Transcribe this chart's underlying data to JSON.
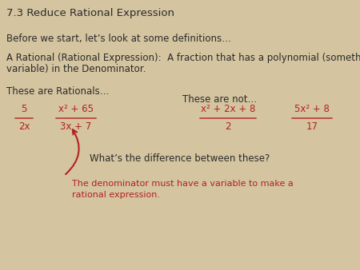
{
  "bg_color": "#d4c4a0",
  "title": "7.3 Reduce Rational Expression",
  "title_color": "#2b2b2b",
  "title_fontsize": 9.5,
  "body_fontsize": 8.5,
  "small_fontsize": 8.0,
  "body_color": "#2b2b2b",
  "red_color": "#b22222",
  "line1": "Before we start, let’s look at some definitions…",
  "line2a": "A Rational (Rational Expression):  A fraction that has a polynomial (something with a",
  "line2b": "variable) in the Denominator.",
  "line3": "These are Rationals…",
  "line4": "These are not…",
  "rational1_num": "5",
  "rational1_den": "2x",
  "rational2_num": "x² + 65",
  "rational2_den": "3x + 7",
  "not1_num": "x² + 2x + 8",
  "not1_den": "2",
  "not2_num": "5x² + 8",
  "not2_den": "17",
  "question": "What’s the difference between these?",
  "answer1": "The denominator must have a variable to make a",
  "answer2": "rational expression."
}
